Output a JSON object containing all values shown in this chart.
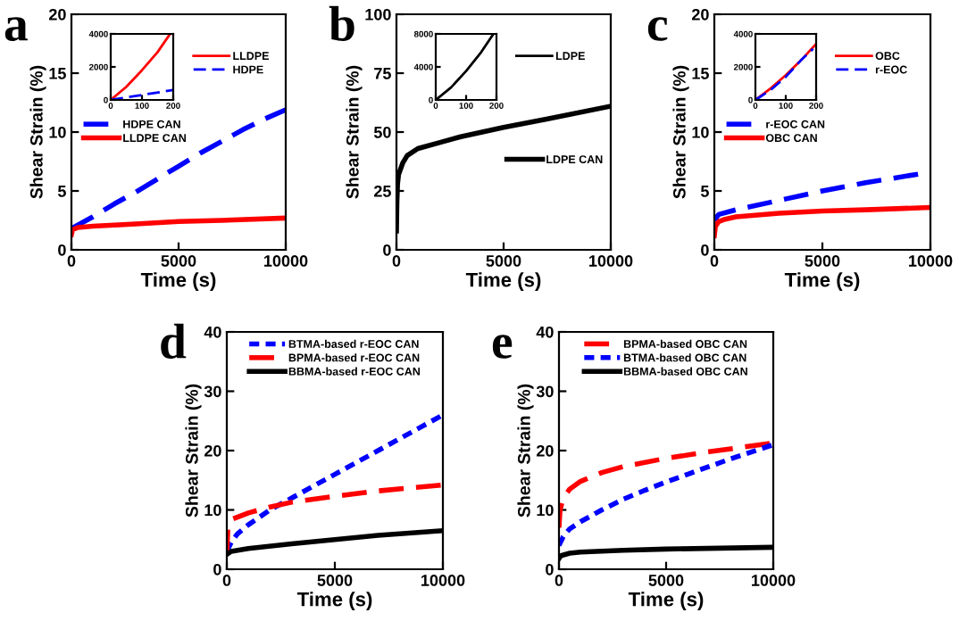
{
  "chart_data": [
    {
      "type": "line",
      "title": "a",
      "xlabel": "Time (s)",
      "ylabel": "Shear Strain (%)",
      "xlim": [
        0,
        10000
      ],
      "ylim": [
        0,
        20
      ],
      "xticks": [
        0,
        5000,
        10000
      ],
      "yticks": [
        0,
        5,
        10,
        15,
        20
      ],
      "grid": false,
      "legend": "center left",
      "series": [
        {
          "name": "HDPE CAN",
          "color": "#0000ff",
          "line_style": "dashed",
          "x": [
            0,
            1000,
            2000,
            3000,
            4000,
            5000,
            6000,
            7000,
            8000,
            9000,
            10000
          ],
          "values": [
            1.8,
            2.8,
            3.9,
            4.9,
            6.0,
            7.1,
            8.2,
            9.2,
            10.2,
            11.1,
            11.9
          ]
        },
        {
          "name": "LLDPE CAN",
          "color": "#ff0000",
          "line_style": "solid",
          "x": [
            0,
            50,
            300,
            1000,
            3000,
            5000,
            7000,
            10000
          ],
          "values": [
            1.3,
            1.7,
            1.9,
            2.0,
            2.2,
            2.4,
            2.5,
            2.7
          ]
        }
      ]
    },
    {
      "type": "line",
      "xlim": [
        0,
        200
      ],
      "ylim": [
        0,
        4000
      ],
      "xticks": [
        0,
        100,
        200
      ],
      "yticks": [
        0,
        2000,
        4000
      ],
      "grid": false,
      "legend": "right",
      "series": [
        {
          "name": "LLDPE",
          "color": "#ff0000",
          "line_style": "solid",
          "x": [
            0,
            50,
            100,
            150,
            190
          ],
          "values": [
            0,
            800,
            1800,
            2900,
            4000
          ]
        },
        {
          "name": "HDPE",
          "color": "#0000ff",
          "line_style": "dashed",
          "x": [
            0,
            100,
            200
          ],
          "values": [
            0,
            300,
            600
          ]
        }
      ]
    },
    {
      "type": "line",
      "title": "b",
      "xlabel": "Time (s)",
      "ylabel": "Shear Strain (%)",
      "xlim": [
        0,
        10000
      ],
      "ylim": [
        0,
        100
      ],
      "xticks": [
        0,
        5000,
        10000
      ],
      "yticks": [
        0,
        25,
        50,
        75,
        100
      ],
      "grid": false,
      "legend": "center right",
      "series": [
        {
          "name": "LDPE CAN",
          "color": "#000000",
          "line_style": "solid",
          "x": [
            0,
            20,
            50,
            100,
            300,
            500,
            1000,
            2000,
            3000,
            5000,
            7000,
            10000
          ],
          "values": [
            8,
            20,
            28,
            32,
            37,
            40,
            43,
            45.5,
            48,
            52,
            55.5,
            61
          ]
        }
      ]
    },
    {
      "type": "line",
      "xlim": [
        0,
        200
      ],
      "ylim": [
        0,
        8000
      ],
      "xticks": [
        0,
        100,
        200
      ],
      "yticks": [
        0,
        4000,
        8000
      ],
      "grid": false,
      "legend": "right",
      "series": [
        {
          "name": "LDPE",
          "color": "#000000",
          "line_style": "solid",
          "x": [
            0,
            50,
            100,
            150,
            190
          ],
          "values": [
            0,
            1500,
            3500,
            5800,
            8000
          ]
        }
      ]
    },
    {
      "type": "line",
      "title": "c",
      "xlabel": "Time (s)",
      "ylabel": "Shear Strain (%)",
      "xlim": [
        0,
        10000
      ],
      "ylim": [
        0,
        20
      ],
      "xticks": [
        0,
        5000,
        10000
      ],
      "yticks": [
        0,
        5,
        10,
        15,
        20
      ],
      "grid": false,
      "legend": "center left",
      "series": [
        {
          "name": "r-EOC CAN",
          "color": "#0000ff",
          "line_style": "dashed",
          "x": [
            0,
            200,
            1000,
            3000,
            5000,
            7000,
            10000
          ],
          "values": [
            2.5,
            3.0,
            3.4,
            4.2,
            5.0,
            5.7,
            6.6
          ]
        },
        {
          "name": "OBC CAN",
          "color": "#ff0000",
          "line_style": "solid",
          "x": [
            0,
            50,
            200,
            500,
            1000,
            3000,
            5000,
            7000,
            10000
          ],
          "values": [
            1.2,
            2.0,
            2.4,
            2.6,
            2.8,
            3.1,
            3.3,
            3.4,
            3.6
          ]
        }
      ]
    },
    {
      "type": "line",
      "xlim": [
        0,
        200
      ],
      "ylim": [
        0,
        4000
      ],
      "xticks": [
        0,
        100,
        200
      ],
      "yticks": [
        0,
        2000,
        4000
      ],
      "grid": false,
      "legend": "right",
      "series": [
        {
          "name": "OBC",
          "color": "#ff0000",
          "line_style": "solid",
          "x": [
            0,
            50,
            100,
            150,
            200
          ],
          "values": [
            0,
            700,
            1500,
            2400,
            3400
          ]
        },
        {
          "name": "r-EOC",
          "color": "#0000ff",
          "line_style": "dashed",
          "x": [
            0,
            50,
            100,
            150,
            190
          ],
          "values": [
            0,
            600,
            1400,
            2400,
            3100
          ]
        }
      ]
    },
    {
      "type": "line",
      "title": "d",
      "xlabel": "Time (s)",
      "ylabel": "Shear Strain (%)",
      "xlim": [
        0,
        10000
      ],
      "ylim": [
        0,
        40
      ],
      "xticks": [
        0,
        5000,
        10000
      ],
      "yticks": [
        0,
        10,
        20,
        30,
        40
      ],
      "grid": false,
      "legend": "upper center",
      "series": [
        {
          "name": "BTMA-based r-EOC CAN",
          "color": "#0000ff",
          "line_style": "dotted",
          "x": [
            0,
            200,
            500,
            1000,
            2000,
            3000,
            4000,
            5000,
            6000,
            7000,
            8000,
            9000,
            10000
          ],
          "values": [
            3,
            4.5,
            6,
            7.5,
            10,
            12,
            14,
            16,
            18,
            20,
            22,
            24,
            26
          ]
        },
        {
          "name": "BPMA-based r-EOC CAN",
          "color": "#ff0000",
          "line_style": "dashed",
          "x": [
            0,
            50,
            300,
            1000,
            2000,
            3000,
            5000,
            7000,
            10000
          ],
          "values": [
            2.5,
            7,
            8.5,
            9.5,
            10.5,
            11.3,
            12.3,
            13.2,
            14.2
          ]
        },
        {
          "name": "BBMA-based r-EOC CAN",
          "color": "#000000",
          "line_style": "solid",
          "x": [
            0,
            200,
            1000,
            3000,
            5000,
            7000,
            10000
          ],
          "values": [
            2.5,
            3,
            3.5,
            4.3,
            5,
            5.7,
            6.5
          ]
        }
      ]
    },
    {
      "type": "line",
      "title": "e",
      "xlabel": "Time (s)",
      "ylabel": "Shear Strain (%)",
      "xlim": [
        0,
        10000
      ],
      "ylim": [
        0,
        40
      ],
      "xticks": [
        0,
        5000,
        10000
      ],
      "yticks": [
        0,
        10,
        20,
        30,
        40
      ],
      "grid": false,
      "legend": "upper center",
      "series": [
        {
          "name": "BPMA-based OBC CAN",
          "color": "#ff0000",
          "line_style": "dashed",
          "x": [
            0,
            50,
            200,
            500,
            1000,
            2000,
            3000,
            5000,
            7000,
            10000
          ],
          "values": [
            7,
            10,
            12,
            13.5,
            14.8,
            16.3,
            17.3,
            18.7,
            19.8,
            21.3
          ]
        },
        {
          "name": "BTMA-based OBC CAN",
          "color": "#0000ff",
          "line_style": "dotted",
          "x": [
            0,
            200,
            500,
            1000,
            2000,
            3000,
            4000,
            5000,
            6000,
            7000,
            8000,
            9000,
            10000
          ],
          "values": [
            4,
            5.5,
            6.8,
            8,
            10,
            11.8,
            13.3,
            14.7,
            16,
            17.3,
            18.6,
            19.8,
            21
          ]
        },
        {
          "name": "BBMA-based OBC CAN",
          "color": "#000000",
          "line_style": "solid",
          "x": [
            0,
            100,
            500,
            1000,
            3000,
            5000,
            10000
          ],
          "values": [
            1.8,
            2.3,
            2.7,
            2.9,
            3.2,
            3.4,
            3.7
          ]
        }
      ]
    }
  ]
}
